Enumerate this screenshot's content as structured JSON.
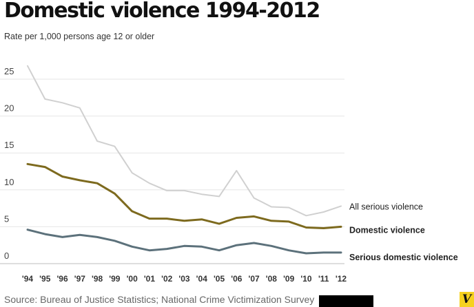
{
  "chart_data": {
    "type": "line",
    "title": "Domestic violence 1994-2012",
    "subtitle": "Rate per 1,000 persons age 12 or older",
    "categories": [
      "'94",
      "'95",
      "'96",
      "'97",
      "'98",
      "'99",
      "'00",
      "'01",
      "'02",
      "'03",
      "'04",
      "'05",
      "'06",
      "'07",
      "'08",
      "'09",
      "'10",
      "'11",
      "'12"
    ],
    "y_ticks": [
      0,
      5,
      10,
      15,
      20,
      25
    ],
    "ylim": [
      0,
      28
    ],
    "grid": true,
    "series": [
      {
        "name": "All serious violence",
        "color": "#d0d0d0",
        "bold": false,
        "values": [
          26.8,
          22.3,
          21.8,
          21.1,
          16.6,
          15.9,
          12.3,
          10.9,
          9.9,
          9.9,
          9.4,
          9.1,
          12.6,
          8.9,
          7.7,
          7.6,
          6.5,
          7.0,
          7.8
        ]
      },
      {
        "name": "Domestic violence",
        "color": "#7d6a1e",
        "bold": true,
        "values": [
          13.5,
          13.1,
          11.8,
          11.3,
          10.9,
          9.5,
          7.1,
          6.1,
          6.1,
          5.8,
          6.0,
          5.4,
          6.2,
          6.4,
          5.8,
          5.7,
          4.9,
          4.8,
          5.0
        ]
      },
      {
        "name": "Serious domestic violence",
        "color": "#5c717b",
        "bold": true,
        "values": [
          4.6,
          4.0,
          3.6,
          3.9,
          3.6,
          3.1,
          2.3,
          1.8,
          2.0,
          2.4,
          2.3,
          1.8,
          2.5,
          2.8,
          2.4,
          1.8,
          1.4,
          1.5,
          1.5
        ]
      }
    ],
    "source": "Source: Bureau of Justice Statistics; National Crime Victimization Survey"
  },
  "logo": {
    "letter": "V",
    "color": "#f6d21f"
  }
}
